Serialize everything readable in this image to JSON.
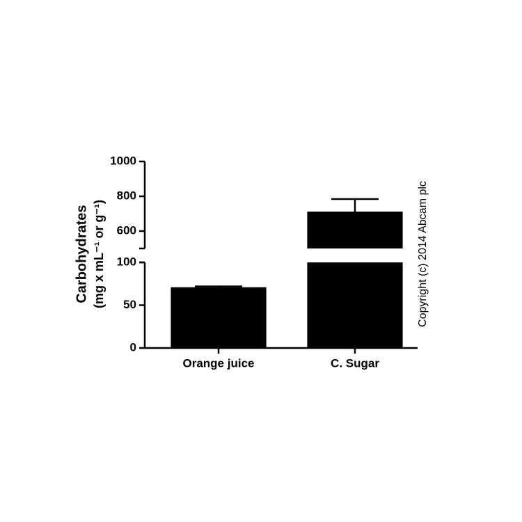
{
  "chart_data": {
    "type": "bar",
    "ylabel": [
      "Carbohydrates",
      "(mg x mL⁻¹ or g⁻¹)"
    ],
    "categories": [
      "Orange juice",
      "C. Sugar"
    ],
    "values": [
      71,
      712
    ],
    "errors": [
      1,
      72
    ],
    "color": "#000000",
    "y_segments": [
      {
        "ylim": [
          0,
          100
        ],
        "yticks": [
          0,
          50,
          100
        ]
      },
      {
        "ylim": [
          500,
          1000
        ],
        "yticks": [
          600,
          800,
          1000
        ]
      }
    ],
    "annotation": "Copyright (c) 2014 Abcam plc"
  }
}
